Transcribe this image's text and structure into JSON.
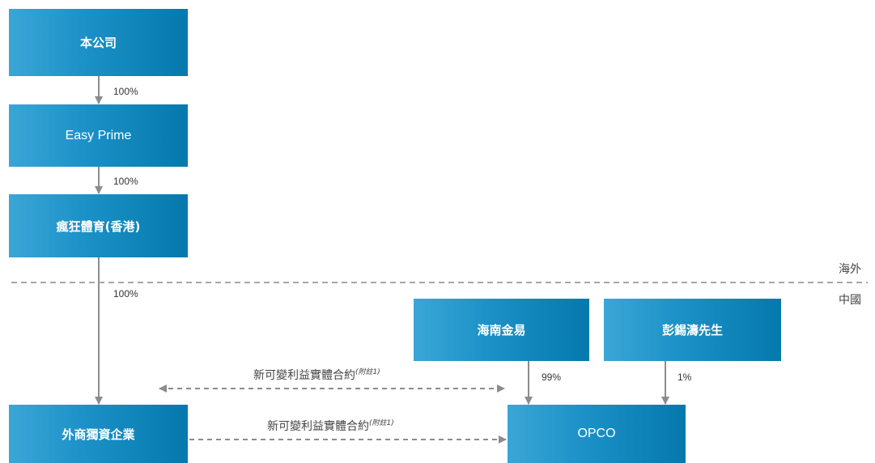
{
  "entities": {
    "company": "本公司",
    "easy_prime": "Easy Prime",
    "crazy_sports_hk": "瘋狂體育(香港)",
    "wfoe": "外商獨資企業",
    "hainan_jinyi": "海南金易",
    "mr_peng": "彭錫濤先生",
    "opco": "OPCO"
  },
  "ownership": {
    "company_to_easy_prime": "100%",
    "easy_prime_to_hk": "100%",
    "hk_to_wfoe": "100%",
    "hainan_to_opco": "99%",
    "peng_to_opco": "1%"
  },
  "regions": {
    "offshore": "海外",
    "prc": "中國"
  },
  "contracts": {
    "upper": {
      "label": "新可變利益實體合約",
      "note": "(附註1)"
    },
    "lower": {
      "label": "新可變利益實體合約",
      "note": "(附註1)"
    }
  },
  "colors": {
    "box_gradient_start": "#3aa6d6",
    "box_gradient_end": "#0579ac",
    "arrow": "#8c8c8c",
    "dashed_line": "#a6a6a6"
  }
}
